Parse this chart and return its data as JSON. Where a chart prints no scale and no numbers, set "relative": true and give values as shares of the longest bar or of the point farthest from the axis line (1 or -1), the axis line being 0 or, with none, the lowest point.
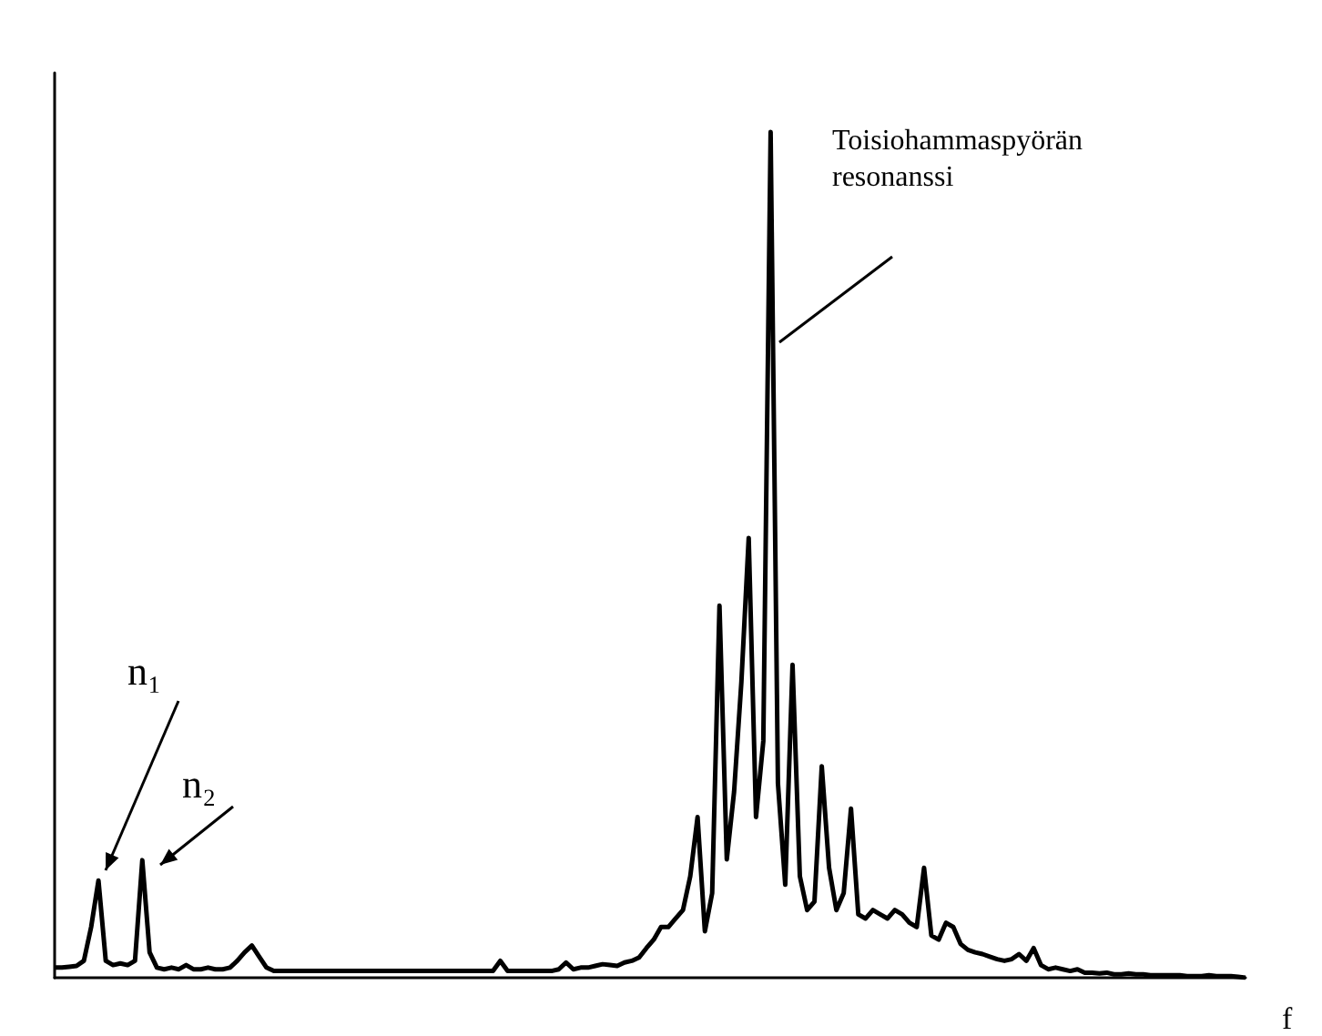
{
  "chart_data": {
    "type": "line",
    "relative": true,
    "xlabel": "f",
    "color": "#000000",
    "marker": "none",
    "line_style": "solid",
    "grid": false,
    "annotations": [
      "n₁",
      "n₂",
      "Toisiohammaspyörän resonanssi"
    ],
    "categories": [
      null,
      null,
      null,
      null,
      null,
      null,
      null,
      null,
      null,
      null,
      null,
      null,
      null,
      null,
      null,
      null,
      null,
      null,
      null,
      null,
      null,
      null,
      null,
      null,
      null,
      null,
      null,
      null,
      null,
      null,
      null,
      null,
      null,
      null,
      null,
      null,
      null,
      null,
      null,
      null,
      null,
      null,
      null,
      null,
      null,
      null,
      null,
      null,
      null,
      null,
      null,
      null,
      null,
      null,
      null,
      null,
      null,
      null,
      null,
      null,
      null,
      null,
      null,
      null,
      null,
      null,
      null,
      null,
      null,
      null,
      null,
      null,
      null,
      null,
      null,
      null,
      null,
      null,
      null,
      null,
      null,
      null,
      null,
      null,
      null,
      null,
      null,
      null,
      null,
      null,
      null,
      null,
      null,
      null,
      null,
      null,
      null,
      null,
      null,
      null,
      null,
      null,
      null,
      null,
      null,
      null,
      null,
      null,
      null,
      null,
      null,
      null,
      null,
      null,
      null,
      null,
      null,
      null,
      null,
      null,
      null,
      null,
      null,
      null,
      null,
      null,
      null,
      null,
      null,
      null,
      null,
      null,
      null,
      null,
      null,
      null,
      null,
      null,
      null,
      null,
      null,
      null,
      null,
      null,
      null,
      null,
      null,
      null,
      null,
      null,
      null,
      null,
      null,
      null,
      null,
      null,
      null,
      null,
      null,
      null,
      null,
      null,
      null,
      null
    ],
    "values": [
      0.012,
      0.012,
      0.013,
      0.014,
      0.02,
      0.06,
      0.115,
      0.02,
      0.015,
      0.017,
      0.015,
      0.02,
      0.139,
      0.03,
      0.012,
      0.01,
      0.012,
      0.01,
      0.015,
      0.01,
      0.01,
      0.012,
      0.01,
      0.01,
      0.012,
      0.02,
      0.03,
      0.038,
      0.025,
      0.012,
      0.008,
      0.008,
      0.008,
      0.008,
      0.008,
      0.008,
      0.008,
      0.008,
      0.008,
      0.008,
      0.008,
      0.008,
      0.008,
      0.008,
      0.008,
      0.008,
      0.008,
      0.008,
      0.008,
      0.008,
      0.008,
      0.008,
      0.008,
      0.008,
      0.008,
      0.008,
      0.008,
      0.008,
      0.008,
      0.008,
      0.008,
      0.02,
      0.008,
      0.008,
      0.008,
      0.008,
      0.008,
      0.008,
      0.008,
      0.01,
      0.018,
      0.01,
      0.012,
      0.012,
      0.014,
      0.016,
      0.015,
      0.014,
      0.018,
      0.02,
      0.024,
      0.035,
      0.045,
      0.06,
      0.06,
      0.07,
      0.08,
      0.12,
      0.19,
      0.055,
      0.1,
      0.44,
      0.14,
      0.22,
      0.35,
      0.52,
      0.19,
      0.28,
      1.0,
      0.23,
      0.11,
      0.37,
      0.12,
      0.08,
      0.09,
      0.25,
      0.13,
      0.08,
      0.1,
      0.2,
      0.075,
      0.07,
      0.08,
      0.075,
      0.07,
      0.08,
      0.075,
      0.065,
      0.06,
      0.13,
      0.05,
      0.045,
      0.065,
      0.06,
      0.04,
      0.033,
      0.03,
      0.028,
      0.025,
      0.022,
      0.02,
      0.022,
      0.028,
      0.02,
      0.035,
      0.015,
      0.01,
      0.012,
      0.01,
      0.008,
      0.01,
      0.006,
      0.006,
      0.005,
      0.006,
      0.004,
      0.004,
      0.005,
      0.004,
      0.004,
      0.003,
      0.003,
      0.003,
      0.003,
      0.003,
      0.002,
      0.002,
      0.002,
      0.003,
      0.002,
      0.002,
      0.002,
      0.001,
      0
    ]
  }
}
